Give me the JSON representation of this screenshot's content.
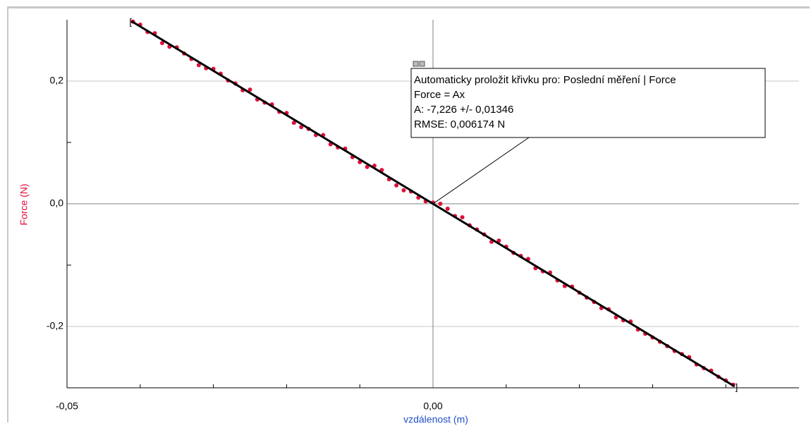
{
  "chart_data": {
    "type": "scatter",
    "x_label": "vzdálenost (m)",
    "y_label": "Force (N)",
    "xlim": [
      -0.05,
      0.05
    ],
    "ylim": [
      -0.3,
      0.3
    ],
    "xticks": [
      {
        "value": -0.05,
        "label": "-0,05"
      },
      {
        "value": 0,
        "label": "0,00"
      }
    ],
    "yticks": [
      {
        "value": -0.2,
        "label": "-0,2"
      },
      {
        "value": 0,
        "label": "0,0"
      },
      {
        "value": 0.2,
        "label": "0,2"
      }
    ],
    "xminor": [
      -0.04,
      -0.03,
      -0.02,
      -0.01,
      0.01,
      0.02,
      0.03,
      0.04
    ],
    "yminor": [
      -0.1,
      0.1
    ],
    "grid": true,
    "series": [
      {
        "name": "Force",
        "color": "#e0103a",
        "x": [
          -0.041,
          -0.04,
          -0.039,
          -0.038,
          -0.037,
          -0.036,
          -0.035,
          -0.034,
          -0.033,
          -0.032,
          -0.031,
          -0.03,
          -0.029,
          -0.028,
          -0.027,
          -0.026,
          -0.025,
          -0.024,
          -0.023,
          -0.022,
          -0.021,
          -0.02,
          -0.019,
          -0.018,
          -0.017,
          -0.016,
          -0.015,
          -0.014,
          -0.013,
          -0.012,
          -0.011,
          -0.01,
          -0.009,
          -0.008,
          -0.007,
          -0.006,
          -0.005,
          -0.004,
          -0.003,
          -0.002,
          -0.001,
          0.0,
          0.001,
          0.002,
          0.003,
          0.004,
          0.005,
          0.006,
          0.007,
          0.008,
          0.009,
          0.01,
          0.011,
          0.012,
          0.013,
          0.014,
          0.015,
          0.016,
          0.017,
          0.018,
          0.019,
          0.02,
          0.021,
          0.022,
          0.023,
          0.024,
          0.025,
          0.026,
          0.027,
          0.028,
          0.029,
          0.03,
          0.031,
          0.032,
          0.033,
          0.034,
          0.035,
          0.036,
          0.037,
          0.038,
          0.039,
          0.04,
          0.041
        ],
        "values": [
          0.297,
          0.292,
          0.28,
          0.278,
          0.262,
          0.256,
          0.255,
          0.245,
          0.236,
          0.226,
          0.221,
          0.22,
          0.212,
          0.201,
          0.196,
          0.185,
          0.186,
          0.17,
          0.165,
          0.162,
          0.15,
          0.148,
          0.132,
          0.125,
          0.122,
          0.112,
          0.112,
          0.097,
          0.092,
          0.09,
          0.076,
          0.068,
          0.06,
          0.062,
          0.055,
          0.04,
          0.03,
          0.022,
          0.02,
          0.01,
          0.004,
          0.002,
          0.0,
          -0.008,
          -0.02,
          -0.022,
          -0.035,
          -0.042,
          -0.05,
          -0.062,
          -0.06,
          -0.07,
          -0.08,
          -0.085,
          -0.09,
          -0.105,
          -0.11,
          -0.112,
          -0.125,
          -0.134,
          -0.135,
          -0.145,
          -0.153,
          -0.16,
          -0.17,
          -0.172,
          -0.185,
          -0.19,
          -0.192,
          -0.205,
          -0.212,
          -0.218,
          -0.225,
          -0.232,
          -0.24,
          -0.245,
          -0.25,
          -0.262,
          -0.268,
          -0.272,
          -0.282,
          -0.288,
          -0.295
        ]
      }
    ],
    "fit": {
      "color": "#000000",
      "A": -7.226,
      "xrange": [
        -0.0412,
        0.0412
      ]
    },
    "annotation": {
      "lines": [
        "Automaticky proložit křivku pro: Poslední měření | Force",
        "Force = Ax",
        "A: -7,226 +/- 0,01346",
        "RMSE: 0,006174 N"
      ]
    }
  }
}
